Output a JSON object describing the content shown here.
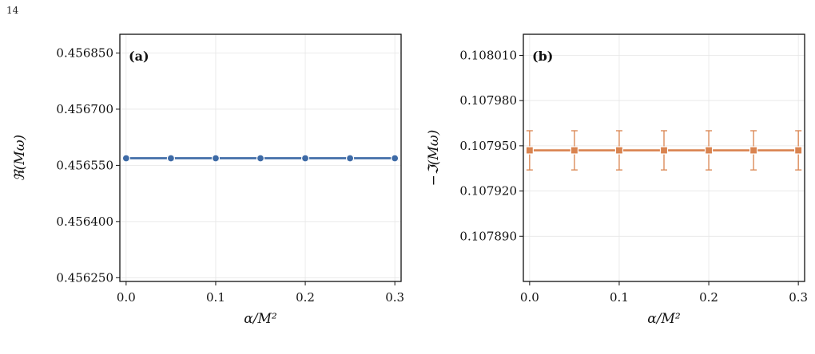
{
  "page_number": "14",
  "chart_data": [
    {
      "type": "line",
      "panel_label": "(a)",
      "xlabel": "α/M²",
      "ylabel": "ℜ(Mω)",
      "x": [
        0.0,
        0.05,
        0.1,
        0.15,
        0.2,
        0.25,
        0.3
      ],
      "xlim": [
        -0.007,
        0.307
      ],
      "xticks": [
        0.0,
        0.1,
        0.2,
        0.3
      ],
      "xtick_labels": [
        "0.0",
        "0.1",
        "0.2",
        "0.3"
      ],
      "ylim": [
        0.45624,
        0.4569
      ],
      "yticks": [
        0.45625,
        0.4564,
        0.45655,
        0.4567,
        0.45685
      ],
      "ytick_labels": [
        "0.456250",
        "0.456400",
        "0.456550",
        "0.456700",
        "0.456850"
      ],
      "grid": true,
      "series": [
        {
          "marker": "circle",
          "color": "#3d6aa6",
          "values": [
            0.456569,
            0.456569,
            0.456569,
            0.456569,
            0.456569,
            0.456569,
            0.456569
          ],
          "errors": [
            6e-06,
            6e-06,
            6e-06,
            6e-06,
            6e-06,
            6e-06,
            6e-06
          ]
        }
      ]
    },
    {
      "type": "line",
      "panel_label": "(b)",
      "xlabel": "α/M²",
      "ylabel": "−ℑ(Mω)",
      "x": [
        0.0,
        0.05,
        0.1,
        0.15,
        0.2,
        0.25,
        0.3
      ],
      "xlim": [
        -0.007,
        0.307
      ],
      "xticks": [
        0.0,
        0.1,
        0.2,
        0.3
      ],
      "xtick_labels": [
        "0.0",
        "0.1",
        "0.2",
        "0.3"
      ],
      "ylim": [
        0.10786,
        0.108024
      ],
      "yticks": [
        0.10789,
        0.10792,
        0.10795,
        0.10798,
        0.10801
      ],
      "ytick_labels": [
        "0.107890",
        "0.107920",
        "0.107950",
        "0.107980",
        "0.108010"
      ],
      "grid": true,
      "series": [
        {
          "marker": "square",
          "color": "#d9834f",
          "values": [
            0.107947,
            0.107947,
            0.107947,
            0.107947,
            0.107947,
            0.107947,
            0.107947
          ],
          "errors": [
            1.3e-05,
            1.3e-05,
            1.3e-05,
            1.3e-05,
            1.3e-05,
            1.3e-05,
            1.3e-05
          ]
        }
      ]
    }
  ]
}
